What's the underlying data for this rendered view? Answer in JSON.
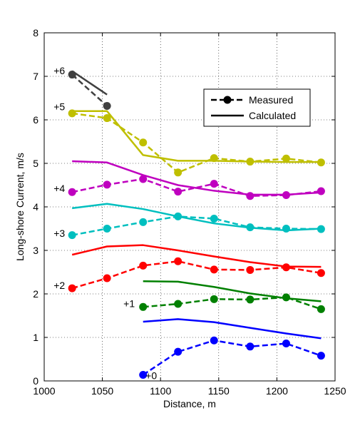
{
  "chart_data": {
    "type": "line",
    "xlabel": "Distance, m",
    "ylabel": "Long-shore Current, m/s",
    "xlim": [
      1000,
      1250
    ],
    "ylim": [
      0,
      8
    ],
    "xticks": [
      1000,
      1050,
      1100,
      1150,
      1200,
      1250
    ],
    "yticks": [
      0,
      1,
      2,
      3,
      4,
      5,
      6,
      7,
      8
    ],
    "grid": true,
    "legend": {
      "position": "top-right",
      "entries": [
        {
          "label": "Measured",
          "style": "dashed-marker"
        },
        {
          "label": "Calculated",
          "style": "solid"
        }
      ]
    },
    "groups": [
      {
        "offset_label": "+0",
        "label_at": [
          1092,
          0.12
        ],
        "color": "#0000ff",
        "measured": {
          "x": [
            1085,
            1115,
            1146,
            1177,
            1208,
            1238
          ],
          "y": [
            0.14,
            0.67,
            0.93,
            0.79,
            0.86,
            0.58
          ]
        },
        "calculated": {
          "x": [
            1085,
            1115,
            1146,
            1177,
            1208,
            1238
          ],
          "y": [
            1.36,
            1.42,
            1.35,
            1.22,
            1.09,
            0.98
          ]
        }
      },
      {
        "offset_label": "+1",
        "label_at": [
          1073,
          1.78
        ],
        "color": "#008000",
        "measured": {
          "x": [
            1085,
            1115,
            1146,
            1177,
            1208,
            1238
          ],
          "y": [
            1.7,
            1.77,
            1.88,
            1.87,
            1.92,
            1.65
          ]
        },
        "calculated": {
          "x": [
            1085,
            1115,
            1146,
            1177,
            1208,
            1238
          ],
          "y": [
            2.29,
            2.28,
            2.16,
            2.01,
            1.9,
            1.83
          ]
        }
      },
      {
        "offset_label": "+2",
        "label_at": [
          1013,
          2.2
        ],
        "color": "#ff0000",
        "measured": {
          "x": [
            1024,
            1054,
            1085,
            1115,
            1146,
            1177,
            1208,
            1238
          ],
          "y": [
            2.13,
            2.36,
            2.65,
            2.75,
            2.56,
            2.55,
            2.61,
            2.48
          ]
        },
        "calculated": {
          "x": [
            1024,
            1054,
            1085,
            1115,
            1146,
            1177,
            1208,
            1238
          ],
          "y": [
            2.9,
            3.09,
            3.12,
            3.0,
            2.86,
            2.73,
            2.63,
            2.62
          ]
        }
      },
      {
        "offset_label": "+3",
        "label_at": [
          1013,
          3.39
        ],
        "color": "#00bfbf",
        "measured": {
          "x": [
            1024,
            1054,
            1085,
            1115,
            1146,
            1177,
            1208,
            1238
          ],
          "y": [
            3.35,
            3.5,
            3.65,
            3.78,
            3.73,
            3.53,
            3.5,
            3.49
          ]
        },
        "calculated": {
          "x": [
            1024,
            1054,
            1085,
            1115,
            1146,
            1177,
            1208,
            1238
          ],
          "y": [
            3.97,
            4.07,
            3.95,
            3.78,
            3.62,
            3.52,
            3.46,
            3.5
          ]
        }
      },
      {
        "offset_label": "+4",
        "label_at": [
          1013,
          4.43
        ],
        "color": "#bf00bf",
        "measured": {
          "x": [
            1024,
            1054,
            1085,
            1115,
            1146,
            1177,
            1208,
            1238
          ],
          "y": [
            4.34,
            4.51,
            4.64,
            4.35,
            4.53,
            4.25,
            4.27,
            4.36
          ]
        },
        "calculated": {
          "x": [
            1024,
            1054,
            1085,
            1115,
            1146,
            1177,
            1208,
            1238
          ],
          "y": [
            5.05,
            5.02,
            4.73,
            4.5,
            4.37,
            4.28,
            4.28,
            4.33
          ]
        }
      },
      {
        "offset_label": "+5",
        "label_at": [
          1013,
          6.3
        ],
        "color": "#bfbf00",
        "measured": {
          "x": [
            1024,
            1054,
            1085,
            1115,
            1146,
            1177,
            1208,
            1238
          ],
          "y": [
            6.15,
            6.04,
            5.48,
            4.79,
            5.12,
            5.04,
            5.11,
            5.02
          ]
        },
        "calculated": {
          "x": [
            1024,
            1054,
            1085,
            1115,
            1146,
            1177,
            1208,
            1238
          ],
          "y": [
            6.2,
            6.2,
            5.19,
            5.06,
            5.06,
            5.04,
            5.03,
            5.03
          ]
        }
      },
      {
        "offset_label": "+6",
        "label_at": [
          1013,
          7.13
        ],
        "color": "#404040",
        "measured": {
          "x": [
            1024,
            1054
          ],
          "y": [
            7.04,
            6.32
          ]
        },
        "calculated": {
          "x": [
            1024,
            1054
          ],
          "y": [
            7.12,
            6.58
          ]
        }
      }
    ]
  }
}
